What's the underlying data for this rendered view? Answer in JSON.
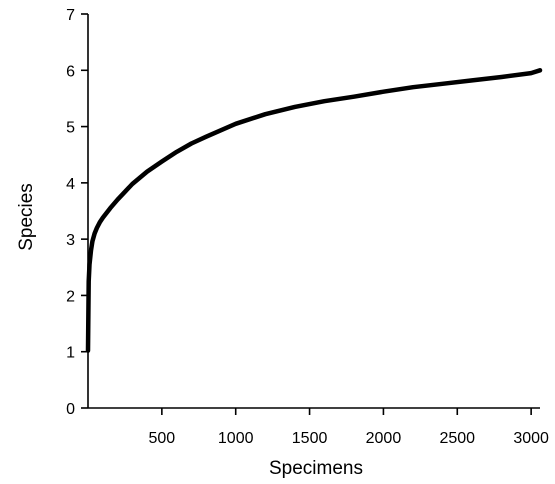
{
  "chart_data": {
    "type": "line",
    "title": "",
    "xlabel": "Specimens",
    "ylabel": "Species",
    "xlim": [
      0,
      3060
    ],
    "ylim": [
      0,
      7
    ],
    "xticks": [
      500,
      1000,
      1500,
      2000,
      2500,
      3000
    ],
    "xtick_labels": [
      "500",
      "1000",
      "1500",
      "2000",
      "2500",
      "3000"
    ],
    "yticks": [
      0,
      1,
      2,
      3,
      4,
      5,
      6,
      7
    ],
    "ytick_labels": [
      "0",
      "1",
      "2",
      "3",
      "4",
      "5",
      "6",
      "7"
    ],
    "grid": false,
    "legend": "none",
    "series": [
      {
        "color": "#000000",
        "x": [
          0,
          5,
          10,
          20,
          30,
          45,
          60,
          80,
          100,
          150,
          200,
          300,
          400,
          500,
          600,
          700,
          800,
          1000,
          1200,
          1400,
          1600,
          1800,
          2000,
          2200,
          2400,
          2600,
          2800,
          3000,
          3060
        ],
        "y": [
          1.02,
          2.25,
          2.55,
          2.8,
          2.96,
          3.1,
          3.2,
          3.3,
          3.38,
          3.55,
          3.7,
          3.98,
          4.2,
          4.38,
          4.55,
          4.7,
          4.82,
          5.05,
          5.22,
          5.35,
          5.45,
          5.53,
          5.62,
          5.7,
          5.76,
          5.82,
          5.88,
          5.95,
          6.0
        ]
      }
    ]
  }
}
